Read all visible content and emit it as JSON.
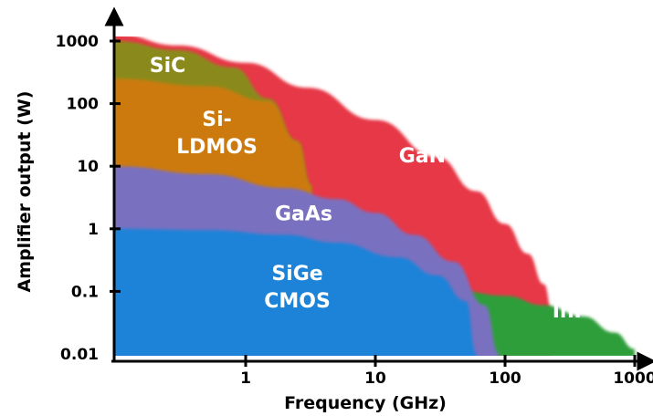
{
  "chart_data": {
    "type": "area",
    "title": "",
    "xlabel": "Frequency (GHz)",
    "ylabel": "Amplifier output (W)",
    "xscale": "log",
    "yscale": "log",
    "xlim": [
      0.1,
      1000
    ],
    "ylim": [
      0.01,
      1000
    ],
    "x_ticks": [
      {
        "value": 1,
        "label": "1"
      },
      {
        "value": 10,
        "label": "10"
      },
      {
        "value": 100,
        "label": "100"
      },
      {
        "value": 1000,
        "label": "1000"
      }
    ],
    "y_ticks": [
      {
        "value": 1000,
        "label": "1000"
      },
      {
        "value": 100,
        "label": "100"
      },
      {
        "value": 10,
        "label": "10"
      },
      {
        "value": 1,
        "label": "1"
      },
      {
        "value": 0.1,
        "label": "0.1"
      },
      {
        "value": 0.01,
        "label": "0.01"
      }
    ],
    "regions": [
      {
        "name": "GaN",
        "label_lines": [
          "GaN"
        ],
        "label_at": [
          23,
          15
        ],
        "color": "#e63946",
        "boundary": [
          [
            0.1,
            1300
          ],
          [
            0.3,
            850
          ],
          [
            1,
            450
          ],
          [
            3,
            180
          ],
          [
            10,
            55
          ],
          [
            30,
            14
          ],
          [
            60,
            4
          ],
          [
            100,
            1.2
          ],
          [
            150,
            0.4
          ],
          [
            200,
            0.13
          ],
          [
            230,
            0.05
          ],
          [
            230,
            0.01
          ]
        ]
      },
      {
        "name": "InP",
        "label_lines": [
          "InP"
        ],
        "label_at": [
          320,
          0.05
        ],
        "color": "#2e9e3a",
        "boundary": [
          [
            30,
            0.01
          ],
          [
            45,
            0.1
          ],
          [
            100,
            0.085
          ],
          [
            200,
            0.06
          ],
          [
            400,
            0.04
          ],
          [
            700,
            0.022
          ],
          [
            1000,
            0.012
          ]
        ]
      },
      {
        "name": "SiC",
        "label_lines": [
          "SiC"
        ],
        "label_at": [
          0.25,
          420
        ],
        "color": "#8a8a1e",
        "boundary": [
          [
            0.1,
            1000
          ],
          [
            0.3,
            720
          ],
          [
            0.8,
            380
          ],
          [
            1.5,
            120
          ],
          [
            2.5,
            25
          ],
          [
            3.2,
            5
          ]
        ]
      },
      {
        "name": "Si-LDMOS",
        "label_lines": [
          "Si-",
          "LDMOS"
        ],
        "label_at": [
          0.6,
          35
        ],
        "color": "#cc7a10",
        "boundary": [
          [
            0.1,
            250
          ],
          [
            0.5,
            190
          ],
          [
            1.5,
            110
          ],
          [
            2.5,
            25
          ],
          [
            3.2,
            5
          ]
        ]
      },
      {
        "name": "GaAs",
        "label_lines": [
          "GaAs"
        ],
        "label_at": [
          2.8,
          1.8
        ],
        "color": "#7a6fc0",
        "boundary": [
          [
            0.1,
            10
          ],
          [
            0.5,
            7.5
          ],
          [
            2,
            4.5
          ],
          [
            5,
            3
          ],
          [
            10,
            1.8
          ],
          [
            20,
            0.8
          ],
          [
            40,
            0.3
          ],
          [
            70,
            0.06
          ],
          [
            90,
            0.01
          ]
        ]
      },
      {
        "name": "SiGe CMOS",
        "label_lines": [
          "SiGe",
          "CMOS"
        ],
        "label_at": [
          2.5,
          0.12
        ],
        "color": "#1f83d8",
        "boundary": [
          [
            0.1,
            1
          ],
          [
            0.5,
            0.95
          ],
          [
            2,
            0.8
          ],
          [
            5,
            0.6
          ],
          [
            15,
            0.35
          ],
          [
            30,
            0.18
          ],
          [
            50,
            0.07
          ],
          [
            60,
            0.01
          ]
        ]
      }
    ],
    "legend": "none",
    "grid": false
  }
}
